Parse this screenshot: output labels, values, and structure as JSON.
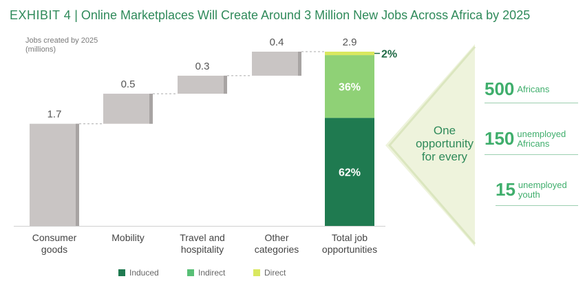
{
  "title": {
    "exhibit": "EXHIBIT 4",
    "separator": "|",
    "text": "Online Marketplaces Will Create Around 3 Million New Jobs Across Africa by 2025"
  },
  "colors": {
    "title": "#2f8a5a",
    "waterfall_bar": "#c9c5c4",
    "waterfall_shade": "#a8a4a3",
    "induced": "#1f7a50",
    "indirect": "#8fd176",
    "direct": "#d9e860",
    "callout_bg": "#eef3dc",
    "accent_text": "#3fae6c"
  },
  "chart_data": {
    "type": "bar",
    "subtype": "waterfall",
    "ylabel": "Jobs created by 2025\n(millions)",
    "ylim": [
      0,
      3.0
    ],
    "categories": [
      "Consumer\ngoods",
      "Mobility",
      "Travel and\nhospitality",
      "Other\ncategories",
      "Total job\nopportunities"
    ],
    "values": [
      1.7,
      0.5,
      0.3,
      0.4,
      2.9
    ],
    "value_labels": [
      "1.7",
      "0.5",
      "0.3",
      "0.4",
      "2.9"
    ],
    "total_breakdown": [
      {
        "name": "Induced",
        "share": 62,
        "label": "62%"
      },
      {
        "name": "Indirect",
        "share": 36,
        "label": "36%"
      },
      {
        "name": "Direct",
        "share": 2,
        "label": "2%"
      }
    ],
    "legend": [
      "Induced",
      "Indirect",
      "Direct"
    ]
  },
  "callout": {
    "heading_lines": [
      "One",
      "opportunity",
      "for every"
    ],
    "items": [
      {
        "number": "500",
        "label_lines": [
          "Africans"
        ]
      },
      {
        "number": "150",
        "label_lines": [
          "unemployed",
          "Africans"
        ]
      },
      {
        "number": "15",
        "label_lines": [
          "unemployed",
          "youth"
        ]
      }
    ]
  }
}
